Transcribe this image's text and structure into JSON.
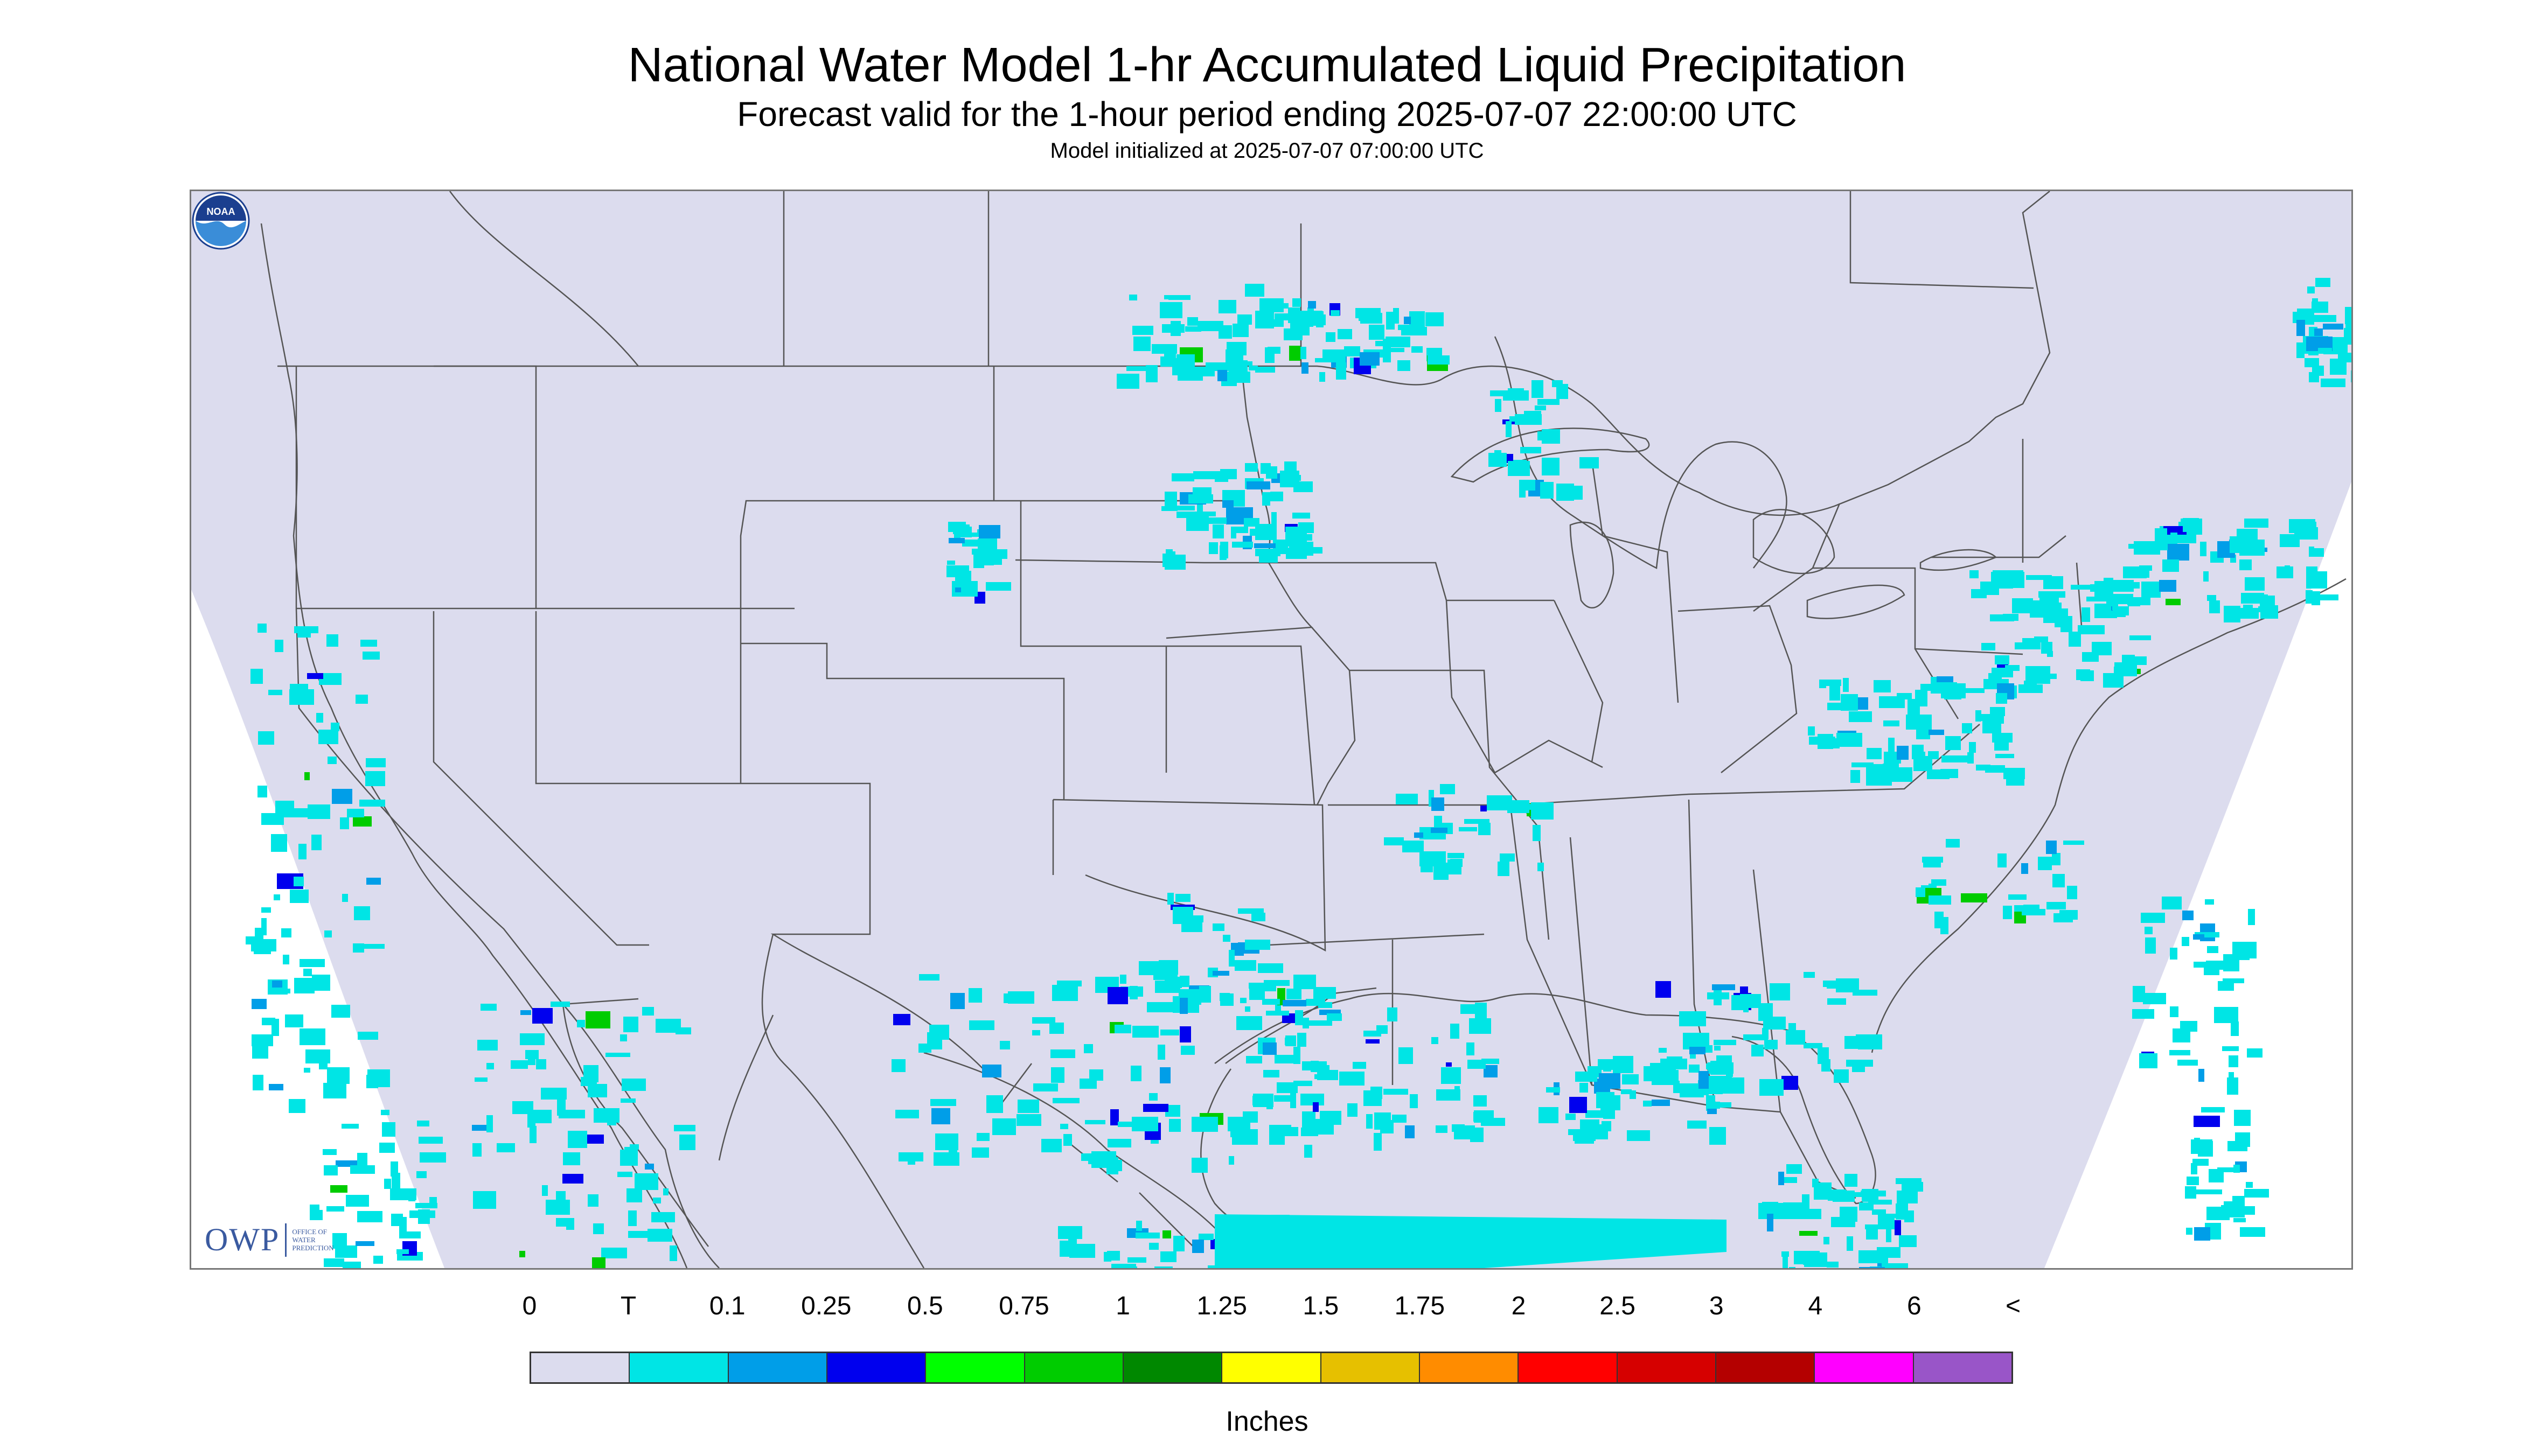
{
  "header": {
    "title": "National Water Model 1-hr Accumulated Liquid Precipitation",
    "subtitle": "Forecast valid for the 1-hour period ending 2025-07-07 22:00:00 UTC",
    "model_init": "Model initialized at 2025-07-07 07:00:00 UTC"
  },
  "map": {
    "background_color": "#dcdcee",
    "outside_color": "#ffffff",
    "boundary_color": "#555555",
    "precip_light_color": "#00e5e5",
    "precip_medium_color": "#009ee8",
    "precip_heavy_color": "#0000ee",
    "precip_green_color": "#00cc00"
  },
  "logos": {
    "owp_mark": "OWP",
    "owp_text": [
      "OFFICE OF",
      "WATER",
      "PREDICTION"
    ],
    "noaa_text": "NOAA"
  },
  "legend": {
    "labels": [
      "0",
      "T",
      "0.1",
      "0.25",
      "0.5",
      "0.75",
      "1",
      "1.25",
      "1.5",
      "1.75",
      "2",
      "2.5",
      "3",
      "4",
      "6",
      "<"
    ],
    "colors": [
      "#dcdcee",
      "#00e5e5",
      "#009ee8",
      "#0000ee",
      "#00ff00",
      "#00cc00",
      "#008800",
      "#ffff00",
      "#e6c000",
      "#ff8c00",
      "#ff0000",
      "#d60000",
      "#b40000",
      "#ff00ff",
      "#9955c8"
    ],
    "units": "Inches"
  }
}
